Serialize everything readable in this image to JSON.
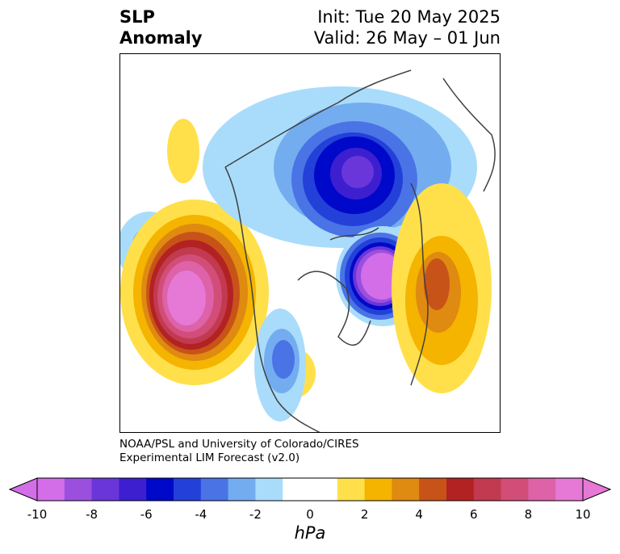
{
  "title": {
    "left_line1": "SLP",
    "left_line2": "Anomaly",
    "right_line1": "Init: Tue 20 May 2025",
    "right_line2": "Valid: 26 May – 01 Jun"
  },
  "credit": {
    "line1": "NOAA/PSL and University of Colorado/CIRES",
    "line2": "Experimental LIM Forecast (v2.0)"
  },
  "colorbar": {
    "units": "hPa",
    "ticks": [
      "-10",
      "-8",
      "-6",
      "-4",
      "-2",
      "0",
      "2",
      "4",
      "6",
      "8",
      "10"
    ],
    "colors": [
      "#d36ee8",
      "#9b4fdf",
      "#6a36d9",
      "#3d1fd0",
      "#0008c9",
      "#2341d9",
      "#4a73e6",
      "#74acf0",
      "#a9dcfb",
      "#ffffff",
      "#ffffff",
      "#ffe04a",
      "#f4b400",
      "#df8a10",
      "#c85318",
      "#b32222",
      "#c23a50",
      "#d24d78",
      "#dd62a8",
      "#e678d6"
    ]
  },
  "map": {
    "projection": "north-polar-stereographic",
    "coastline_color": "#404040"
  }
}
